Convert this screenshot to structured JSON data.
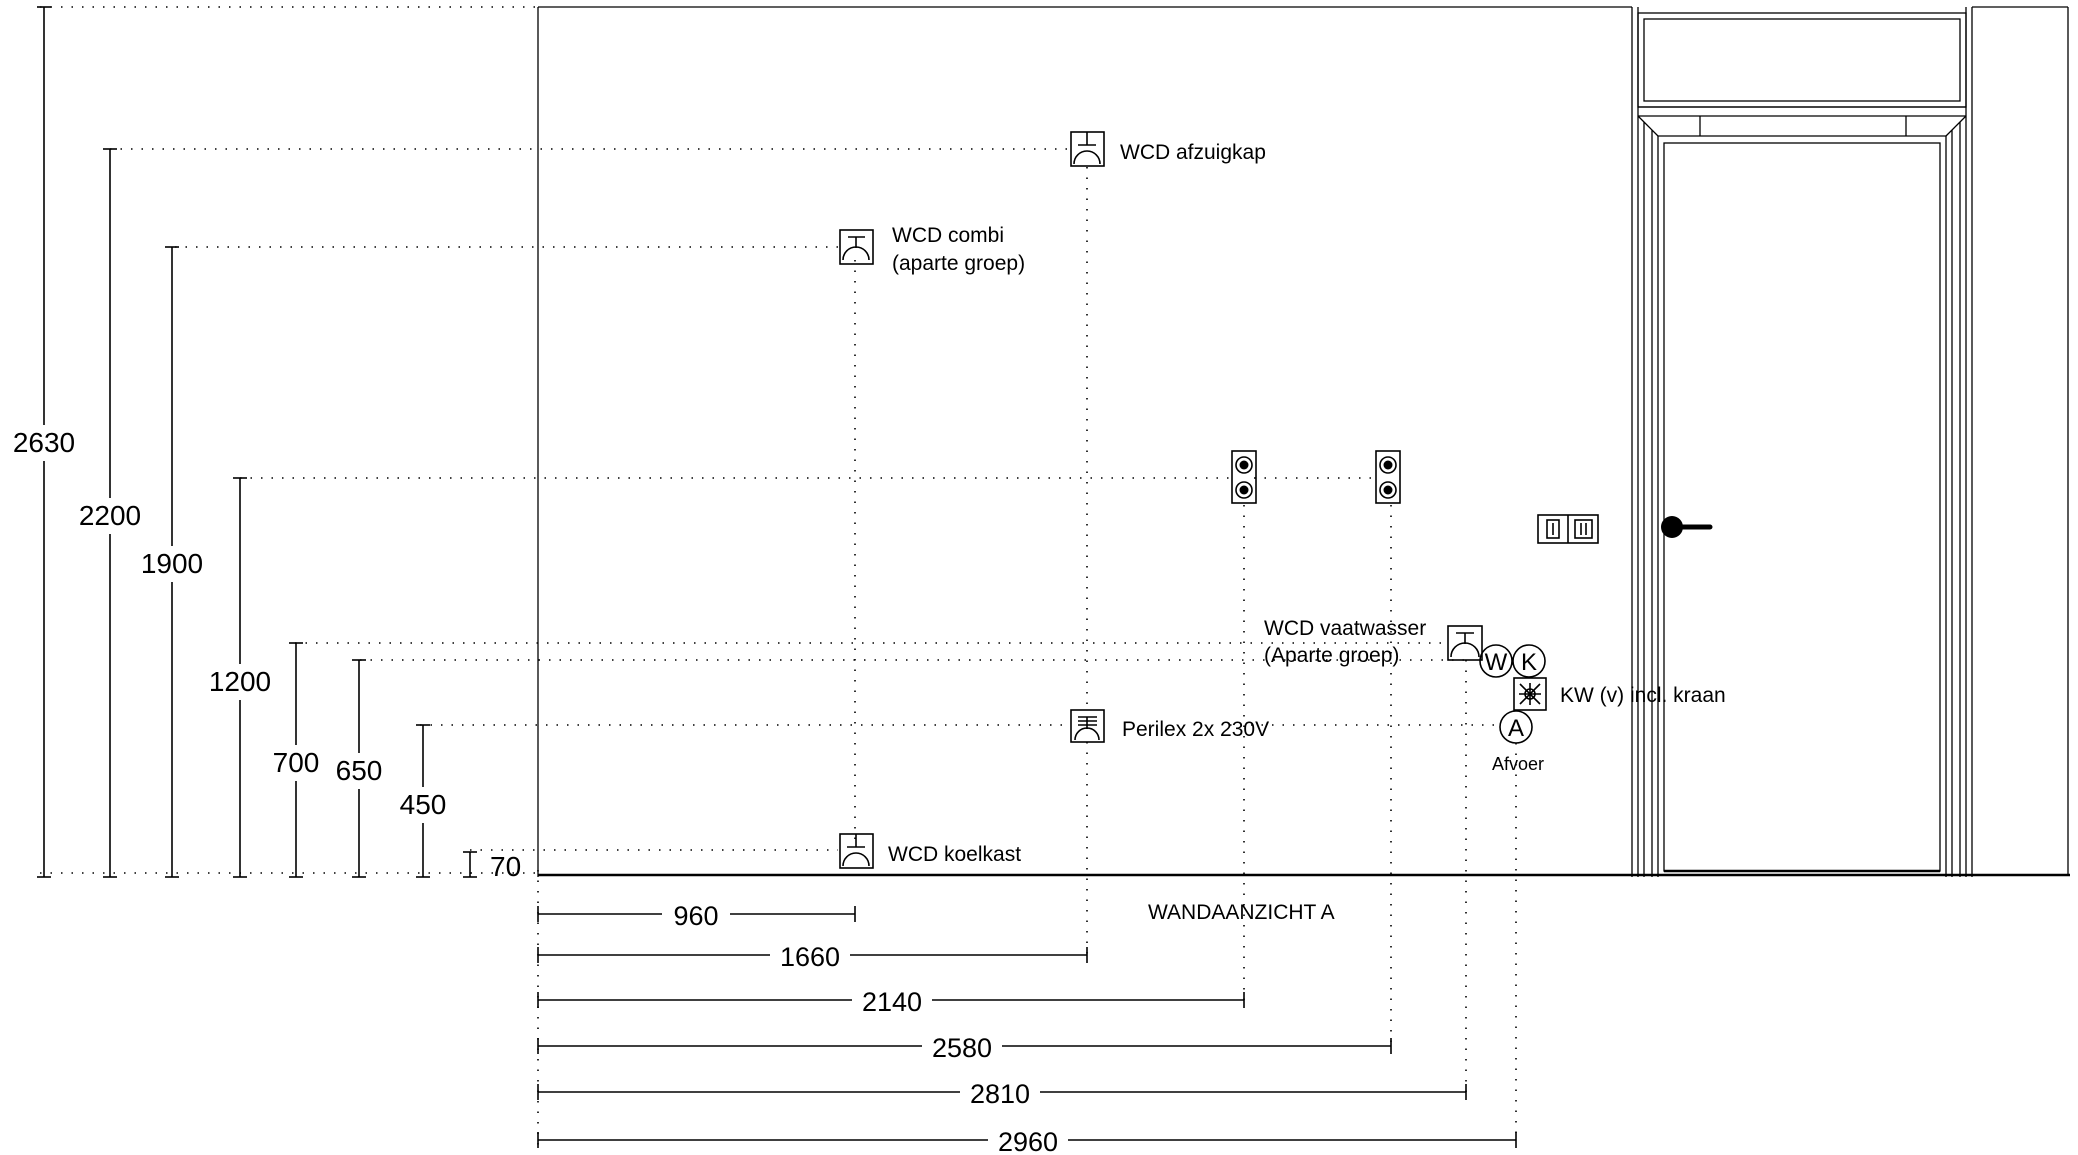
{
  "view_title": "WANDAANZICHT A",
  "vertical_dimensions": [
    "2630",
    "2200",
    "1900",
    "1200",
    "700",
    "650",
    "450",
    "70"
  ],
  "horizontal_dimensions": [
    "960",
    "1660",
    "2140",
    "2580",
    "2810",
    "2960"
  ],
  "symbols": {
    "wcd_afzuigkap": "WCD afzuigkap",
    "wcd_combi_line1": "WCD combi",
    "wcd_combi_line2": "(aparte groep)",
    "wcd_vaatwasser_line1": "WCD vaatwasser",
    "wcd_vaatwasser_line2": "(Aparte groep)",
    "kw_kraan": "KW (v) incl. kraan",
    "afvoer": "Afvoer",
    "perilex": "Perilex 2x 230V",
    "wcd_koelkast": "WCD koelkast",
    "w_letter": "W",
    "k_letter": "K",
    "a_letter": "A"
  }
}
